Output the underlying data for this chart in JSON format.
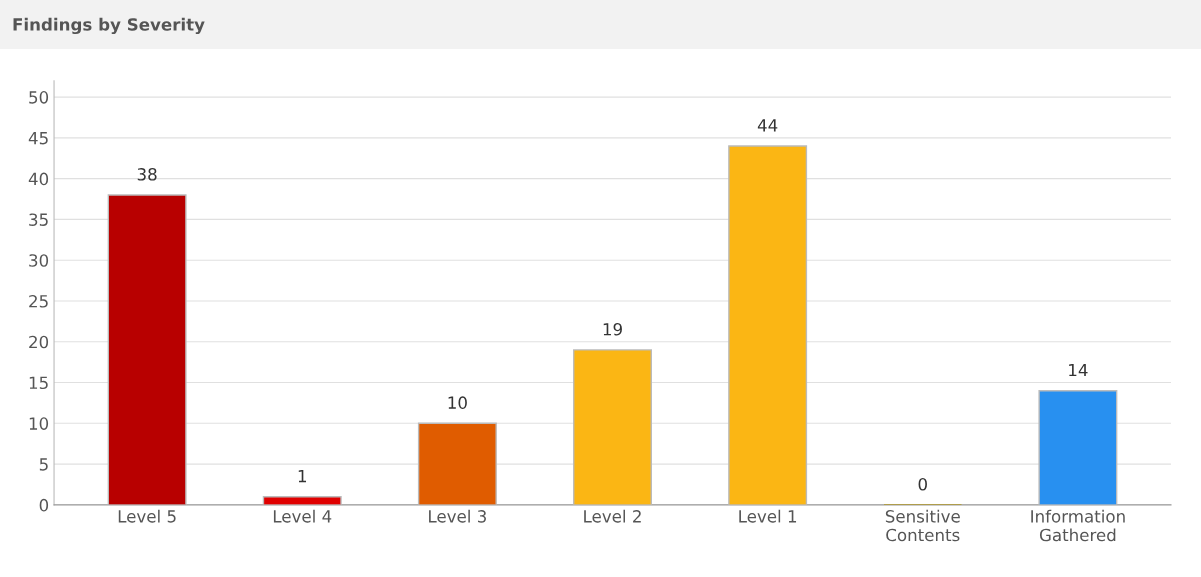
{
  "chart_data": {
    "type": "bar",
    "title": "Findings by Severity",
    "categories": [
      "Level 5",
      "Level 4",
      "Level 3",
      "Level 2",
      "Level 1",
      "Sensitive\nContents",
      "Information\nGathered"
    ],
    "values": [
      38,
      1,
      10,
      19,
      44,
      0,
      14
    ],
    "colors": [
      "#b80000",
      "#e00000",
      "#e05c00",
      "#fbb614",
      "#fbb614",
      "#b09000",
      "#2890f0"
    ],
    "ylim": [
      0,
      52
    ],
    "yticks": [
      0,
      5,
      10,
      15,
      20,
      25,
      30,
      35,
      40,
      45,
      50
    ],
    "grid": "y",
    "data_labels": true
  }
}
